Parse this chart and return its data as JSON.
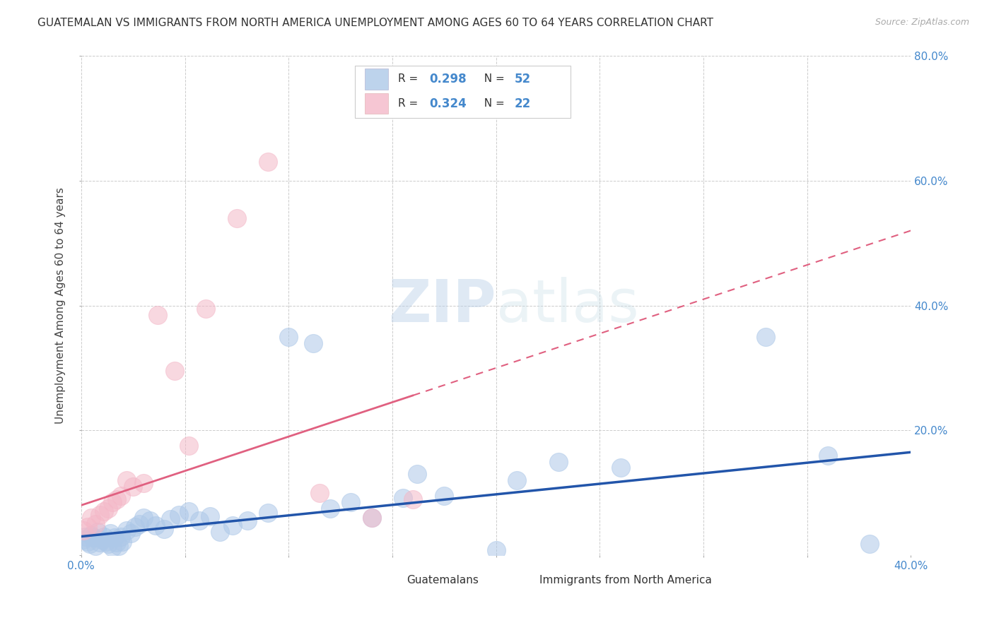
{
  "title": "GUATEMALAN VS IMMIGRANTS FROM NORTH AMERICA UNEMPLOYMENT AMONG AGES 60 TO 64 YEARS CORRELATION CHART",
  "source": "Source: ZipAtlas.com",
  "ylabel": "Unemployment Among Ages 60 to 64 years",
  "xlim": [
    0.0,
    0.4
  ],
  "ylim": [
    0.0,
    0.8
  ],
  "xticks": [
    0.0,
    0.05,
    0.1,
    0.15,
    0.2,
    0.25,
    0.3,
    0.35,
    0.4
  ],
  "yticks": [
    0.0,
    0.2,
    0.4,
    0.6,
    0.8
  ],
  "blue_R": 0.298,
  "blue_N": 52,
  "pink_R": 0.324,
  "pink_N": 22,
  "blue_color": "#adc8e8",
  "pink_color": "#f4b8c8",
  "blue_line_color": "#2255aa",
  "pink_line_color": "#e06080",
  "tick_color": "#4488CC",
  "watermark_color": "#c8ddf0",
  "blue_scatter_x": [
    0.001,
    0.002,
    0.003,
    0.004,
    0.005,
    0.006,
    0.007,
    0.008,
    0.009,
    0.01,
    0.011,
    0.012,
    0.013,
    0.014,
    0.015,
    0.016,
    0.017,
    0.018,
    0.019,
    0.02,
    0.022,
    0.024,
    0.026,
    0.028,
    0.03,
    0.033,
    0.036,
    0.04,
    0.043,
    0.047,
    0.052,
    0.057,
    0.062,
    0.067,
    0.073,
    0.08,
    0.09,
    0.1,
    0.112,
    0.12,
    0.13,
    0.14,
    0.155,
    0.162,
    0.175,
    0.2,
    0.21,
    0.23,
    0.26,
    0.33,
    0.36,
    0.38
  ],
  "blue_scatter_y": [
    0.025,
    0.03,
    0.022,
    0.018,
    0.032,
    0.028,
    0.015,
    0.038,
    0.02,
    0.025,
    0.03,
    0.022,
    0.018,
    0.035,
    0.012,
    0.028,
    0.02,
    0.015,
    0.03,
    0.022,
    0.04,
    0.035,
    0.045,
    0.05,
    0.06,
    0.055,
    0.048,
    0.042,
    0.058,
    0.065,
    0.07,
    0.055,
    0.062,
    0.038,
    0.048,
    0.055,
    0.068,
    0.35,
    0.34,
    0.075,
    0.085,
    0.06,
    0.092,
    0.13,
    0.095,
    0.008,
    0.12,
    0.15,
    0.14,
    0.35,
    0.16,
    0.018
  ],
  "pink_scatter_x": [
    0.001,
    0.003,
    0.005,
    0.007,
    0.009,
    0.011,
    0.013,
    0.015,
    0.017,
    0.019,
    0.022,
    0.025,
    0.03,
    0.037,
    0.045,
    0.052,
    0.06,
    0.075,
    0.09,
    0.115,
    0.14,
    0.16
  ],
  "pink_scatter_y": [
    0.04,
    0.045,
    0.06,
    0.05,
    0.065,
    0.07,
    0.075,
    0.085,
    0.09,
    0.095,
    0.12,
    0.11,
    0.115,
    0.385,
    0.295,
    0.175,
    0.395,
    0.54,
    0.63,
    0.1,
    0.06,
    0.09
  ],
  "blue_line_x0": 0.0,
  "blue_line_y0": 0.03,
  "blue_line_x1": 0.4,
  "blue_line_y1": 0.165,
  "pink_line_x0": 0.0,
  "pink_line_y0": 0.08,
  "pink_line_x1": 0.4,
  "pink_line_y1": 0.52
}
